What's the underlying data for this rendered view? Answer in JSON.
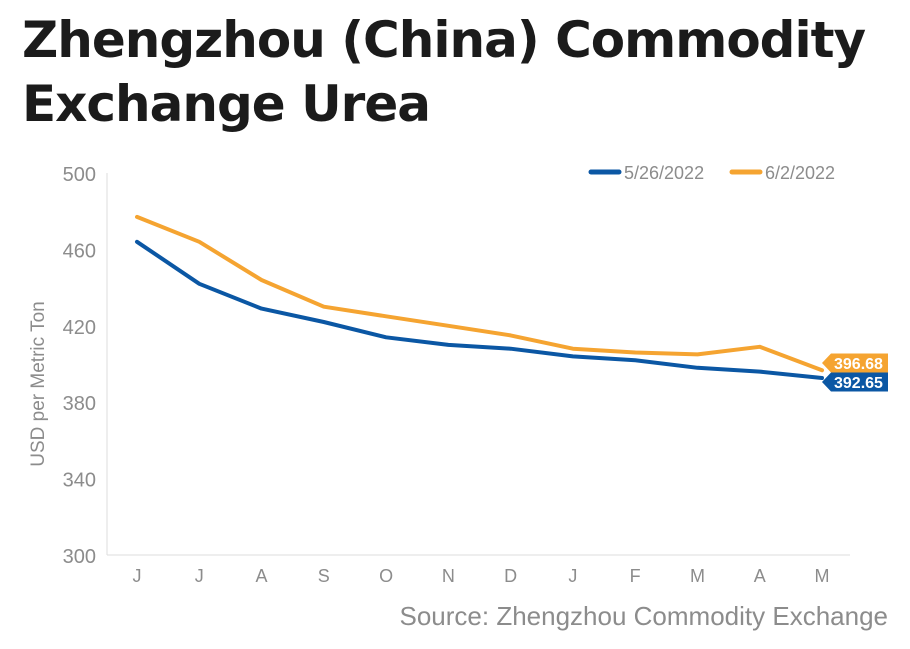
{
  "title": "Zhengzhou (China) Commodity Exchange Urea",
  "source": "Source: Zhengzhou Commodity Exchange",
  "colors": {
    "series1": "#0b57a4",
    "series2": "#f5a431",
    "axis": "#8c8c8c",
    "grid": "#dddddd"
  },
  "chart_data": {
    "type": "line",
    "title": "Zhengzhou (China) Commodity Exchange Urea",
    "xlabel": "",
    "ylabel": "USD per Metric Ton",
    "ylim": [
      300,
      500
    ],
    "yticks": [
      500,
      460,
      420,
      380,
      340,
      300
    ],
    "categories": [
      "J",
      "J",
      "A",
      "S",
      "O",
      "N",
      "D",
      "J",
      "F",
      "M",
      "A",
      "M"
    ],
    "grid": false,
    "legend_position": "top-right",
    "series": [
      {
        "name": "5/26/2022",
        "color": "#0b57a4",
        "values": [
          464,
          442,
          429,
          422,
          414,
          410,
          408,
          404,
          402,
          398,
          396,
          392.65
        ],
        "end_label": "392.65"
      },
      {
        "name": "6/2/2022",
        "color": "#f5a431",
        "values": [
          477,
          464,
          444,
          430,
          425,
          420,
          415,
          408,
          406,
          405,
          409,
          396.68
        ],
        "end_label": "396.68"
      }
    ]
  }
}
